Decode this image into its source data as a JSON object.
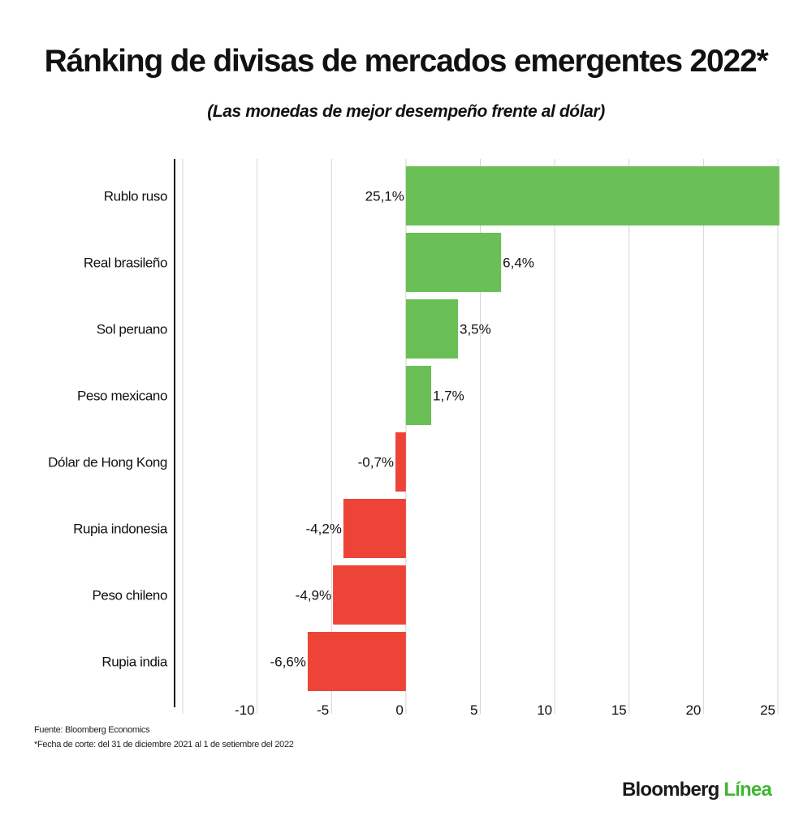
{
  "title": "Ránking de divisas de mercados emergentes 2022*",
  "subtitle": "(Las monedas de mejor desempeño frente al dólar)",
  "chart_data": {
    "type": "bar",
    "orientation": "horizontal",
    "categories": [
      "Rublo ruso",
      "Real brasileño",
      "Sol peruano",
      "Peso mexicano",
      "Dólar de Hong Kong",
      "Rupia indonesia",
      "Peso chileno",
      "Rupia india"
    ],
    "values": [
      25.1,
      6.4,
      3.5,
      1.7,
      -0.7,
      -4.2,
      -4.9,
      -6.6
    ],
    "data_labels": [
      "25,1%",
      "6,4%",
      "3,5%",
      "1,7%",
      "-0,7%",
      "-4,2%",
      "-4,9%",
      "-6,6%"
    ],
    "xlim": [
      -15,
      25
    ],
    "xticks": [
      -10,
      -5,
      0,
      5,
      10,
      15,
      20,
      25
    ],
    "xtick_labels": [
      "-10",
      "-5",
      "0",
      "5",
      "10",
      "15",
      "20",
      "25"
    ],
    "grid": true,
    "colors": {
      "positive": "#6abf56",
      "negative": "#ee4438"
    }
  },
  "footer": {
    "source": "Fuente: Bloomberg Economics",
    "note": "*Fecha de corte: del 31 de diciembre 2021 al 1 de setiembre del 2022"
  },
  "logo": {
    "brand": "Bloomberg",
    "sub": "Línea"
  }
}
